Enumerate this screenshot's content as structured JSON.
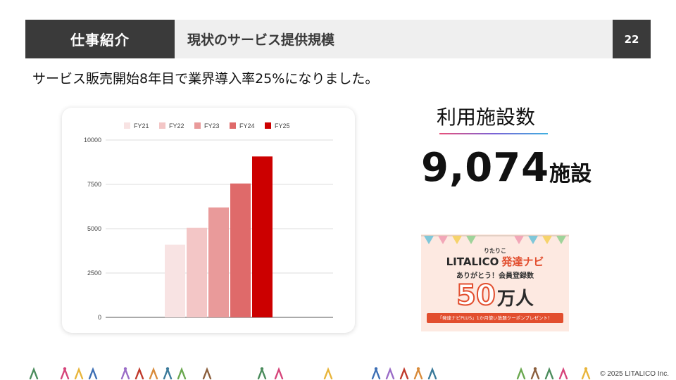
{
  "header": {
    "section": "仕事紹介",
    "title": "現状のサービス提供規模",
    "page_number": "22"
  },
  "lead_text": "サービス販売開始8年目で業界導入率25%になりました。",
  "chart_data": {
    "type": "bar",
    "series": [
      {
        "name": "FY21",
        "value": 4100,
        "color": "#f8e3e3"
      },
      {
        "name": "FY22",
        "value": 5050,
        "color": "#f3c6c6"
      },
      {
        "name": "FY23",
        "value": 6200,
        "color": "#e99a9a"
      },
      {
        "name": "FY24",
        "value": 7550,
        "color": "#df6a6a"
      },
      {
        "name": "FY25",
        "value": 9074,
        "color": "#cc0000"
      }
    ],
    "ylim": [
      0,
      10000
    ],
    "yticks": [
      "0",
      "2500",
      "5000",
      "7500",
      "10000"
    ],
    "legend_position": "top",
    "grid": true
  },
  "metric": {
    "title": "利用施設数",
    "value": "9,074",
    "unit": "施設"
  },
  "banner": {
    "kana": "りたりこ",
    "brand": "LITALICO",
    "service": "発達ナビ",
    "thanks": "ありがとう！会員登録数",
    "count": "50",
    "count_unit": "万人",
    "campaign": "「発達ナビPLUS」1か月使い放題クーポンプレゼント！"
  },
  "footer": {
    "copyright": "© 2025 LITALICO Inc.",
    "figure_colors": [
      "#4a8c5c",
      "#d6447a",
      "#e8b53a",
      "#3d6fb5",
      "#9a6cc7",
      "#c0392b",
      "#d98b3a",
      "#3a7a9a",
      "#6aa84f",
      "#8b5e3c"
    ]
  }
}
